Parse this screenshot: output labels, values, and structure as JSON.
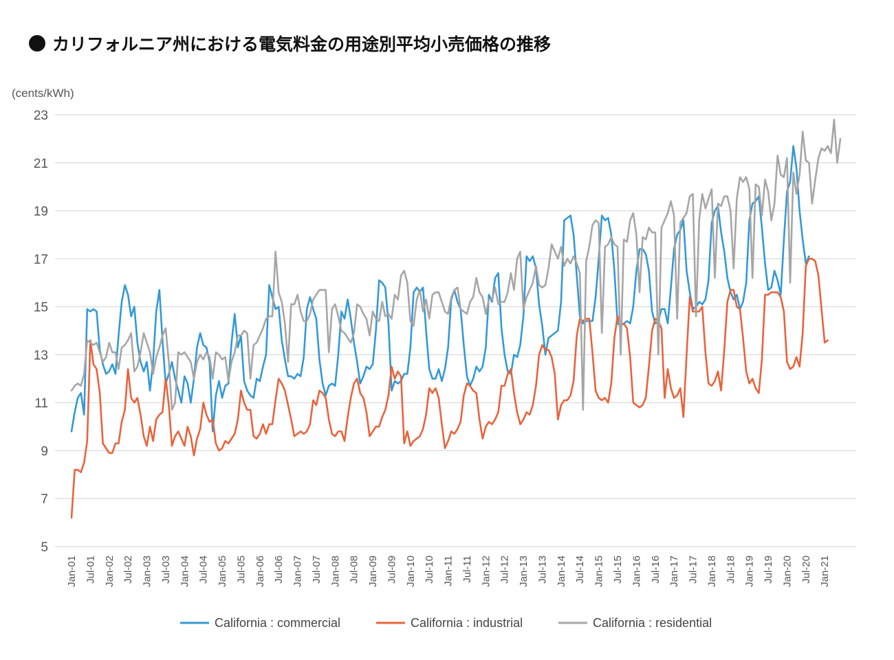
{
  "chart_data": {
    "type": "line",
    "title": "カリフォルニア州における電気料金の用途別平均小売価格の推移",
    "ylabel": "(cents/kWh)",
    "xlabel": "",
    "ylim": [
      5,
      23
    ],
    "yticks": [
      23,
      21,
      19,
      17,
      15,
      13,
      11,
      9,
      7,
      5
    ],
    "grid": true,
    "legend_position": "bottom",
    "x_start": "Jan-01",
    "x_ticks": [
      "Jan-01",
      "Jul-01",
      "Jan-02",
      "Jul-02",
      "Jan-03",
      "Jul-03",
      "Jan-04",
      "Jul-04",
      "Jan-05",
      "Jul-05",
      "Jan-06",
      "Jul-06",
      "Jan-07",
      "Jul-07",
      "Jan-08",
      "Jul-08",
      "Jan-09",
      "Jul-09",
      "Jan-10",
      "Jul-10",
      "Jan-11",
      "Jul-11",
      "Jan-12",
      "Jul-12",
      "Jan-13",
      "Jul-13",
      "Jan-14",
      "Jul-14",
      "Jan-15",
      "Jul-15",
      "Jan-16",
      "Jul-16",
      "Jan-17",
      "Jul-17",
      "Jan-18",
      "Jul-18",
      "Jan-19",
      "Jul-19",
      "Jan-20",
      "Jul-20",
      "Jan-21"
    ],
    "series": [
      {
        "name": "California : commercial",
        "color": "#3399d6",
        "values": [
          9.8,
          10.6,
          11.2,
          11.4,
          10.5,
          14.9,
          14.8,
          14.9,
          14.8,
          13.2,
          12.6,
          12.2,
          12.3,
          12.6,
          12.2,
          13.8,
          15.2,
          15.9,
          15.5,
          14.6,
          15.0,
          13.5,
          12.7,
          12.3,
          12.7,
          11.5,
          12.7,
          14.8,
          15.7,
          13.6,
          11.8,
          12.2,
          12.7,
          12.0,
          11.5,
          11.0,
          12.1,
          11.8,
          11.0,
          12.0,
          13.3,
          13.9,
          13.4,
          13.3,
          12.7,
          9.8,
          11.3,
          11.9,
          11.2,
          11.7,
          11.8,
          13.5,
          14.7,
          13.3,
          13.8,
          11.9,
          11.5,
          11.3,
          11.2,
          12.0,
          11.9,
          12.5,
          13.0,
          15.9,
          15.4,
          14.9,
          15.0,
          13.6,
          12.8,
          12.1,
          12.1,
          12.0,
          12.2,
          12.1,
          12.9,
          14.9,
          15.4,
          14.9,
          14.5,
          12.8,
          11.8,
          11.3,
          11.7,
          11.8,
          11.7,
          13.0,
          14.8,
          14.5,
          15.3,
          14.5,
          13.5,
          12.7,
          11.8,
          12.1,
          12.5,
          12.4,
          12.6,
          14.0,
          16.1,
          16.0,
          15.8,
          14.3,
          11.5,
          11.9,
          11.8,
          11.9,
          12.2,
          12.2,
          13.3,
          15.6,
          15.8,
          15.6,
          15.8,
          14.0,
          12.4,
          12.0,
          12.0,
          12.4,
          11.9,
          12.4,
          13.3,
          15.3,
          15.7,
          15.2,
          14.9,
          13.4,
          12.1,
          11.7,
          12.0,
          12.5,
          12.3,
          12.5,
          13.3,
          15.5,
          15.2,
          16.2,
          16.4,
          14.1,
          13.0,
          12.3,
          12.2,
          13.0,
          12.9,
          13.4,
          14.6,
          17.1,
          16.9,
          17.1,
          16.6,
          15.1,
          14.2,
          13.0,
          13.7,
          13.8,
          13.9,
          14.0,
          15.2,
          18.6,
          18.7,
          18.8,
          18.0,
          16.3,
          14.6,
          14.3,
          14.4,
          14.4,
          14.4,
          15.4,
          17.0,
          18.8,
          18.6,
          18.7,
          18.0,
          16.5,
          14.3,
          14.2,
          14.3,
          14.4,
          14.3,
          15.0,
          16.5,
          17.4,
          17.4,
          17.2,
          16.5,
          14.8,
          14.3,
          14.4,
          14.9,
          14.9,
          14.3,
          15.8,
          17.4,
          18.0,
          18.2,
          18.6,
          16.5,
          15.6,
          14.9,
          15.0,
          15.2,
          15.1,
          15.3,
          16.1,
          18.5,
          19.0,
          19.2,
          18.1,
          17.3,
          16.2,
          15.6,
          15.3,
          15.5,
          14.9,
          15.2,
          16.0,
          18.6,
          19.3,
          19.4,
          19.6,
          18.3,
          16.8,
          15.7,
          15.8,
          16.5,
          16.1,
          15.5,
          17.8,
          19.8,
          20.2,
          21.7,
          20.8,
          19.0,
          17.8,
          16.8,
          17.1
        ]
      },
      {
        "name": "California : industrial",
        "color": "#e8633c",
        "values": [
          6.2,
          8.2,
          8.2,
          8.1,
          8.5,
          9.4,
          13.6,
          12.6,
          12.4,
          11.4,
          9.3,
          9.1,
          8.9,
          8.9,
          9.3,
          9.3,
          10.2,
          10.7,
          12.4,
          11.2,
          11.0,
          11.2,
          10.5,
          9.6,
          9.2,
          10.0,
          9.4,
          10.3,
          10.5,
          10.6,
          12.0,
          10.9,
          9.2,
          9.6,
          9.8,
          9.5,
          9.2,
          10.0,
          9.6,
          8.8,
          9.5,
          9.9,
          11.0,
          10.5,
          10.2,
          10.3,
          9.3,
          9.0,
          9.1,
          9.4,
          9.3,
          9.5,
          9.7,
          10.3,
          11.5,
          11.0,
          10.7,
          10.7,
          9.6,
          9.5,
          9.7,
          10.1,
          9.7,
          10.1,
          10.1,
          11.1,
          12.0,
          11.8,
          11.5,
          10.9,
          10.3,
          9.6,
          9.7,
          9.8,
          9.7,
          9.8,
          10.1,
          11.1,
          10.9,
          11.5,
          11.4,
          11.2,
          10.3,
          9.7,
          9.6,
          9.8,
          9.8,
          9.4,
          10.4,
          11.2,
          11.8,
          12.0,
          11.4,
          11.2,
          10.6,
          9.6,
          9.8,
          10.0,
          10.0,
          10.4,
          10.7,
          11.3,
          12.5,
          12.0,
          12.3,
          12.1,
          9.3,
          9.8,
          9.2,
          9.4,
          9.5,
          9.6,
          9.9,
          10.5,
          11.6,
          11.4,
          11.6,
          11.2,
          10.1,
          9.1,
          9.4,
          9.8,
          9.7,
          9.9,
          10.2,
          11.3,
          11.8,
          11.7,
          11.5,
          11.4,
          10.3,
          9.5,
          10.0,
          10.2,
          10.1,
          10.3,
          10.6,
          11.7,
          11.7,
          12.2,
          12.4,
          11.4,
          10.6,
          10.1,
          10.3,
          10.6,
          10.5,
          10.9,
          11.7,
          13.0,
          13.4,
          13.2,
          13.2,
          12.9,
          12.2,
          10.3,
          10.9,
          11.1,
          11.1,
          11.3,
          11.9,
          13.8,
          14.5,
          14.4,
          14.5,
          14.5,
          13.1,
          11.5,
          11.2,
          11.1,
          11.2,
          11.0,
          11.8,
          13.7,
          14.6,
          14.2,
          14.3,
          14.1,
          12.9,
          11.0,
          10.9,
          10.8,
          10.9,
          11.2,
          12.5,
          14.0,
          14.5,
          14.4,
          14.1,
          11.2,
          12.4,
          11.6,
          11.2,
          11.3,
          11.6,
          10.4,
          13.0,
          15.4,
          14.8,
          14.8,
          14.8,
          15.0,
          13.1,
          11.8,
          11.7,
          11.9,
          12.3,
          11.5,
          13.2,
          15.2,
          15.7,
          15.7,
          15.0,
          14.9,
          13.7,
          12.3,
          11.8,
          12.0,
          11.6,
          11.4,
          12.8,
          15.5,
          15.5,
          15.6,
          15.6,
          15.6,
          15.4,
          14.8,
          12.7,
          12.4,
          12.5,
          12.9,
          12.5,
          13.9,
          16.7,
          17.0,
          17.0,
          16.9,
          16.3,
          14.9,
          13.5,
          13.6
        ]
      },
      {
        "name": "California : residential",
        "color": "#a6a6a6",
        "values": [
          11.5,
          11.7,
          11.8,
          11.7,
          12.2,
          13.6,
          13.5,
          13.4,
          13.5,
          13.1,
          12.7,
          12.9,
          13.5,
          13.1,
          13.1,
          12.4,
          13.3,
          13.4,
          13.6,
          13.9,
          12.3,
          12.5,
          13.1,
          13.9,
          13.5,
          13.1,
          12.2,
          12.9,
          13.3,
          13.8,
          14.1,
          12.7,
          10.7,
          11.0,
          13.1,
          13.0,
          13.1,
          12.9,
          12.7,
          12.0,
          12.7,
          13.0,
          12.8,
          13.1,
          12.9,
          12.0,
          13.1,
          13.0,
          12.8,
          12.9,
          11.9,
          12.7,
          13.1,
          13.8,
          13.8,
          14.0,
          13.9,
          12.0,
          13.4,
          13.5,
          13.8,
          14.1,
          14.5,
          14.6,
          14.6,
          17.3,
          15.6,
          15.2,
          14.3,
          12.7,
          15.1,
          15.1,
          15.5,
          14.8,
          14.4,
          14.4,
          14.7,
          15.3,
          15.5,
          15.7,
          15.7,
          15.7,
          13.1,
          14.9,
          15.1,
          14.6,
          14.0,
          13.9,
          13.7,
          13.5,
          13.9,
          15.1,
          15.0,
          14.7,
          14.5,
          13.8,
          14.8,
          14.5,
          14.4,
          15.2,
          14.6,
          14.7,
          14.5,
          15.5,
          15.3,
          16.3,
          16.5,
          16.0,
          14.4,
          14.2,
          15.3,
          15.7,
          14.8,
          15.3,
          14.5,
          15.5,
          15.6,
          15.6,
          15.2,
          14.8,
          14.7,
          15.4,
          15.7,
          15.8,
          14.9,
          14.8,
          14.7,
          15.2,
          15.4,
          16.2,
          15.6,
          15.4,
          14.7,
          15.3,
          15.3,
          15.8,
          15.1,
          15.2,
          15.2,
          15.6,
          16.4,
          15.7,
          17.0,
          17.3,
          14.9,
          15.4,
          15.7,
          16.0,
          16.7,
          15.9,
          15.8,
          15.9,
          16.6,
          17.6,
          17.3,
          17.0,
          17.5,
          16.7,
          17.0,
          16.8,
          17.1,
          16.8,
          16.4,
          10.7,
          16.9,
          17.5,
          18.4,
          18.6,
          18.5,
          13.9,
          17.5,
          17.6,
          17.9,
          17.6,
          17.5,
          13.0,
          17.8,
          17.7,
          18.6,
          18.9,
          18.0,
          15.6,
          17.9,
          17.8,
          18.3,
          18.1,
          18.1,
          13.0,
          18.3,
          18.6,
          18.9,
          19.4,
          18.8,
          14.5,
          18.5,
          18.7,
          18.9,
          19.6,
          19.7,
          14.6,
          18.6,
          19.7,
          19.1,
          19.5,
          19.9,
          16.2,
          19.3,
          19.2,
          19.6,
          19.6,
          19.0,
          16.6,
          19.5,
          20.4,
          20.2,
          20.4,
          19.9,
          16.2,
          20.1,
          20.0,
          18.8,
          20.3,
          19.8,
          18.6,
          19.3,
          21.3,
          20.5,
          20.4,
          21.2,
          16.0,
          20.6,
          19.7,
          20.5,
          22.3,
          21.1,
          21.0,
          19.3,
          20.3,
          21.2,
          21.6,
          21.5,
          21.7,
          21.4,
          22.8,
          21.0,
          22.0
        ]
      }
    ]
  }
}
